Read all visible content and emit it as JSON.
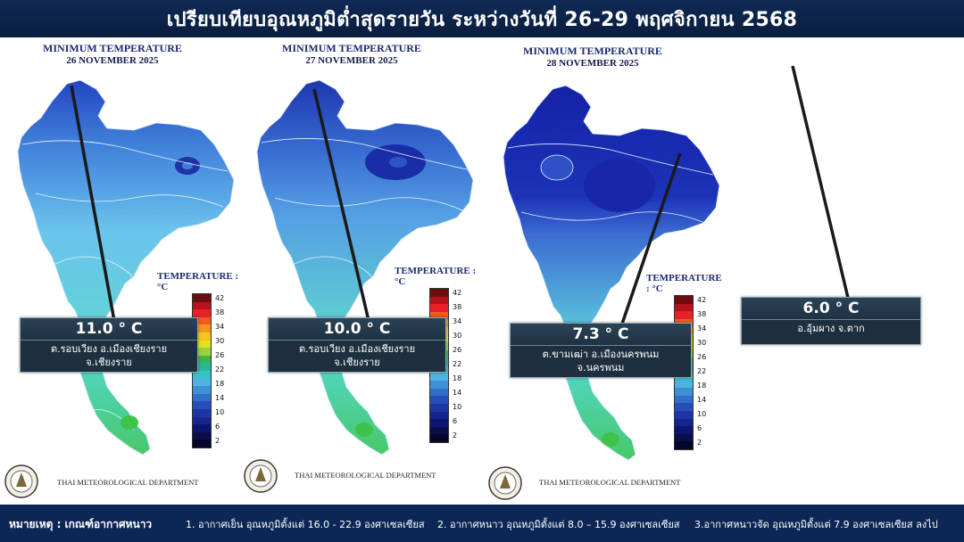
{
  "title": "เปรียบเทียบอุณหภูมิต่ำสุดรายวัน ระหว่างวันที่ 26-29 พฤศจิกายน 2568",
  "panels": [
    {
      "map_title": "MINIMUM TEMPERATURE",
      "map_date": "26 NOVEMBER 2025",
      "temperature_label": "TEMPERATURE : °C",
      "department": "THAI METEOROLOGICAL DEPARTMENT",
      "callout": {
        "value": "11.0 ° C",
        "line1": "ต.รอบเวียง อ.เมืองเชียงราย",
        "line2": "จ.เชียงราย"
      }
    },
    {
      "map_title": "MINIMUM TEMPERATURE",
      "map_date": "27 NOVEMBER 2025",
      "temperature_label": "TEMPERATURE : °C",
      "department": "THAI METEOROLOGICAL DEPARTMENT",
      "callout": {
        "value": "10.0 ° C",
        "line1": "ต.รอบเวียง อ.เมืองเชียงราย",
        "line2": "จ.เชียงราย"
      }
    },
    {
      "map_title": "MINIMUM TEMPERATURE",
      "map_date": "28 NOVEMBER 2025",
      "temperature_label": "TEMPERATURE : °C",
      "department": "THAI METEOROLOGICAL DEPARTMENT",
      "callout": {
        "value": "7.3 ° C",
        "line1": "ต.ขามเฒ่า อ.เมืองนครพนม",
        "line2": "จ.นครพนม"
      }
    }
  ],
  "panel4_callout": {
    "value": "6.0 ° C",
    "line1": "อ.อุ้มผาง จ.ตาก"
  },
  "legend_ticks": [
    "42",
    "38",
    "34",
    "30",
    "26",
    "22",
    "18",
    "14",
    "10",
    "6",
    "2"
  ],
  "legend_colors": [
    "#6b0d0d",
    "#b5121b",
    "#e8202a",
    "#f25a1e",
    "#f7941d",
    "#f8c51b",
    "#e2e31d",
    "#9ad23b",
    "#3cb54a",
    "#27b89a",
    "#36c2c7",
    "#4fb3e0",
    "#3d8fd6",
    "#2f6fc7",
    "#2650b8",
    "#1e35a5",
    "#142590",
    "#0c1670",
    "#0a0e4a",
    "#05062a"
  ],
  "footer": {
    "heading": "หมายเหตุ : เกณฑ์อากาศหนาว",
    "item1": "1. อากาศเย็น อุณหภูมิตั้งแต่ 16.0 - 22.9 องศาเซลเซียส",
    "item2": "2. อากาศหนาว อุณหภูมิตั้งแต่ 8.0 – 15.9 องศาเซลเซียส",
    "item3": "3.อากาศหนาวจัด อุณหภูมิตั้งแต่ 7.9 องศาเซลเซียส ลงไป"
  },
  "colors": {
    "title_bar": "#0c2755",
    "callout_bg": "#1e2f3f",
    "map_north": "#1f3fb8",
    "map_central": "#5fa8e8",
    "map_south": "#5fd6b0"
  }
}
